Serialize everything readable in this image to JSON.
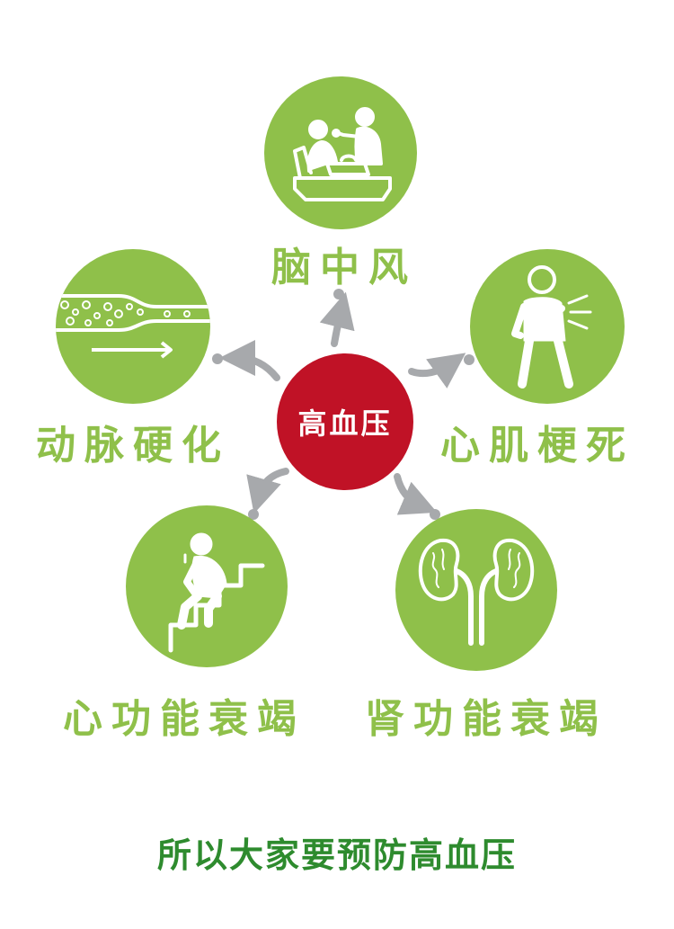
{
  "center": {
    "label": "高血压"
  },
  "nodes": [
    {
      "id": "stroke",
      "label": "脑中风",
      "icon": "caregiver-feeding-patient-icon"
    },
    {
      "id": "arteriosclerosis",
      "label": "动脉硬化",
      "icon": "artery-plaque-icon"
    },
    {
      "id": "myocardial_infarction",
      "label": "心肌梗死",
      "icon": "chest-pain-person-icon"
    },
    {
      "id": "heart_failure",
      "label": "心功能衰竭",
      "icon": "tired-person-on-stairs-icon"
    },
    {
      "id": "kidney_failure",
      "label": "肾功能衰竭",
      "icon": "kidneys-icon"
    }
  ],
  "footer": {
    "text": "所以大家要预防高血压"
  },
  "colors": {
    "circle": "#8fc04a",
    "center": "#c01226",
    "arrow": "#a7a9ac",
    "footer": "#2e8b2e"
  }
}
